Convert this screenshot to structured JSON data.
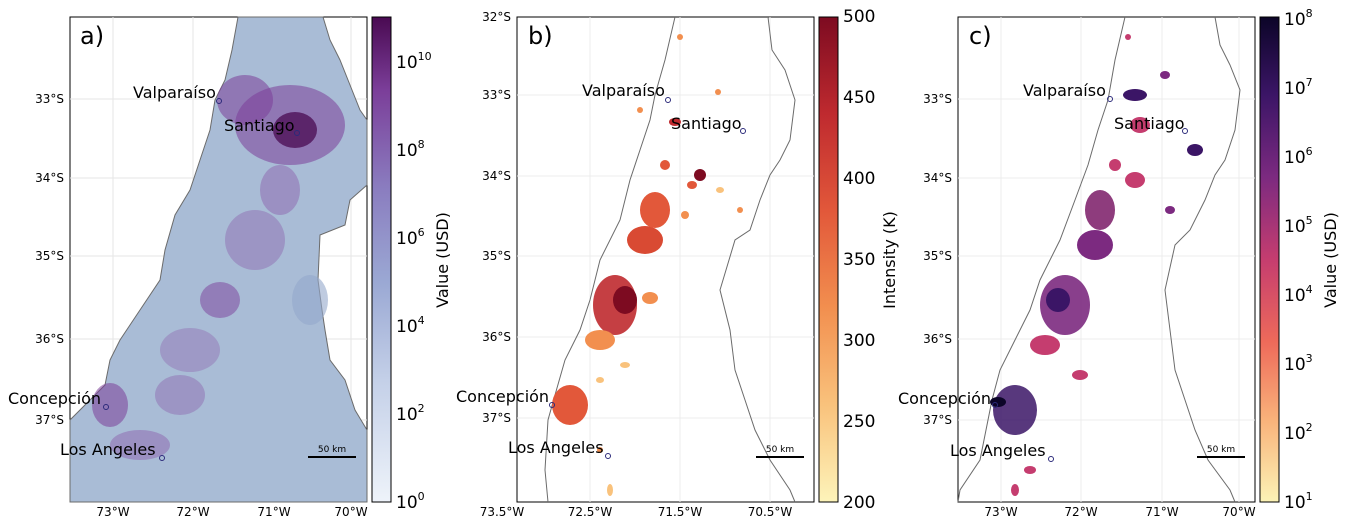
{
  "panels": [
    {
      "id": "a",
      "label": "a)",
      "colorbar": {
        "label": "Value (USD)",
        "scale": "log",
        "range": [
          1,
          100000000000
        ],
        "ticks": [
          {
            "base": "10",
            "exp": "0"
          },
          {
            "base": "10",
            "exp": "2"
          },
          {
            "base": "10",
            "exp": "4"
          },
          {
            "base": "10",
            "exp": "6"
          },
          {
            "base": "10",
            "exp": "8"
          },
          {
            "base": "10",
            "exp": "10"
          }
        ],
        "colors": [
          "#eef3fa",
          "#c4d0e8",
          "#9ba9d4",
          "#8a7cbf",
          "#7b3e99",
          "#4a0a52"
        ]
      },
      "lat_ticks": [
        "33°S",
        "34°S",
        "35°S",
        "36°S",
        "37°S"
      ],
      "lon_ticks": [
        "73°W",
        "72°W",
        "71°W",
        "70°W"
      ],
      "scalebar": "50 km"
    },
    {
      "id": "b",
      "label": "b)",
      "colorbar": {
        "label": "Intensity (K)",
        "scale": "linear",
        "range": [
          200,
          500
        ],
        "ticks": [
          "200",
          "250",
          "300",
          "350",
          "400",
          "450",
          "500"
        ],
        "colors": [
          "#fdf4ba",
          "#f9c27c",
          "#f28f4f",
          "#e2583a",
          "#bf2a2f",
          "#7d0b21"
        ]
      },
      "lat_ticks": [
        "32°S",
        "33°S",
        "34°S",
        "35°S",
        "36°S",
        "37°S"
      ],
      "lon_ticks": [
        "73.5°W",
        "72.5°W",
        "71.5°W",
        "70.5°W"
      ],
      "scalebar": "50 km"
    },
    {
      "id": "c",
      "label": "c)",
      "colorbar": {
        "label": "Value (USD)",
        "scale": "log",
        "range": [
          10,
          100000000
        ],
        "ticks": [
          {
            "base": "10",
            "exp": "1"
          },
          {
            "base": "10",
            "exp": "2"
          },
          {
            "base": "10",
            "exp": "3"
          },
          {
            "base": "10",
            "exp": "4"
          },
          {
            "base": "10",
            "exp": "5"
          },
          {
            "base": "10",
            "exp": "6"
          },
          {
            "base": "10",
            "exp": "7"
          },
          {
            "base": "10",
            "exp": "8"
          }
        ],
        "colors": [
          "#fcf3b6",
          "#f9b27a",
          "#ee6a5a",
          "#c53d6f",
          "#7c2a80",
          "#3b1566",
          "#0c0528"
        ]
      },
      "lat_ticks": [
        "33°S",
        "34°S",
        "35°S",
        "36°S",
        "37°S"
      ],
      "lon_ticks": [
        "73°W",
        "72°W",
        "71°W",
        "70°W"
      ],
      "scalebar": "50 km"
    }
  ],
  "cities": [
    "Valparaíso",
    "Santiago",
    "Concepción",
    "Los Angeles"
  ],
  "colors": {
    "land_a": "#a9bcd6",
    "land_a_dark": "#95a8cc",
    "coast": "#6b6b6b",
    "grid": "#e5e5e5",
    "city_marker": "#2c2a7a"
  }
}
